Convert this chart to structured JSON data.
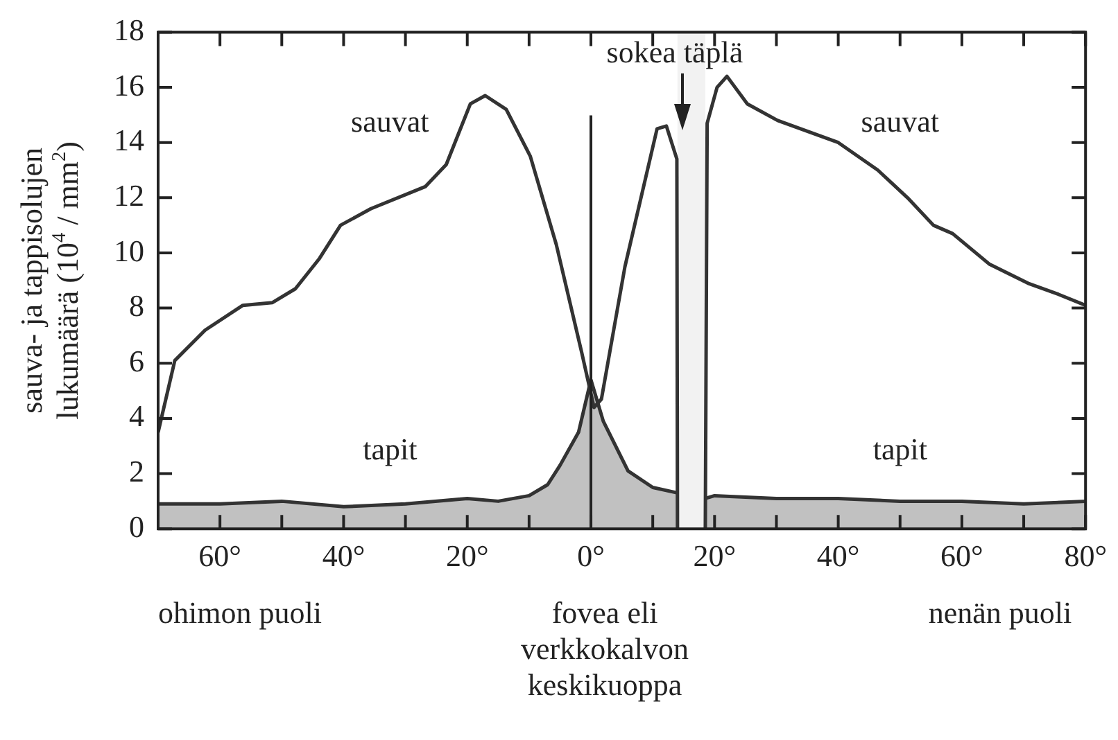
{
  "chart_data": {
    "type": "line",
    "ylabel": "sauva- ja tappisolujen lukumäärä (10$^{4}$ / mm$^{2}$)",
    "xlim": [
      -70,
      80
    ],
    "xticks": [
      {
        "value": -70,
        "label": null
      },
      {
        "value": -60,
        "label": "60°"
      },
      {
        "value": -50,
        "label": null
      },
      {
        "value": -40,
        "label": "40°"
      },
      {
        "value": -30,
        "label": null
      },
      {
        "value": -20,
        "label": "20°"
      },
      {
        "value": -10,
        "label": null
      },
      {
        "value": 0,
        "label": "0°"
      },
      {
        "value": 10,
        "label": null
      },
      {
        "value": 20,
        "label": "20°"
      },
      {
        "value": 30,
        "label": null
      },
      {
        "value": 40,
        "label": "40°"
      },
      {
        "value": 50,
        "label": null
      },
      {
        "value": 60,
        "label": "60°"
      },
      {
        "value": 70,
        "label": null
      },
      {
        "value": 80,
        "label": "80°"
      }
    ],
    "ylim": [
      0,
      18
    ],
    "yticks": [
      0,
      2,
      4,
      6,
      8,
      10,
      12,
      14,
      16,
      18
    ],
    "series": [
      {
        "name": "sauvat",
        "type": "line",
        "color": "#333333",
        "x": [
          -70,
          -67.3,
          -62.4,
          -56.3,
          -51.5,
          -47.8,
          -43.9,
          -40.5,
          -35.6,
          -26.8,
          -23.4,
          -19.5,
          -17.1,
          -13.7,
          -9.8,
          -5.6,
          -1.5,
          0.5,
          1.7,
          5.5,
          10.7,
          12.2,
          13.9,
          14,
          16,
          18.5,
          18.8,
          20.4,
          22,
          25.3,
          30.2,
          40,
          46.4,
          51.2,
          55.4,
          58.5,
          64.4,
          70.7,
          75.6,
          80
        ],
        "values": [
          3.5,
          6.1,
          7.2,
          8.1,
          8.2,
          8.7,
          9.8,
          11.0,
          11.6,
          12.4,
          13.2,
          15.4,
          15.7,
          15.2,
          13.5,
          10.3,
          6.4,
          4.4,
          4.7,
          9.5,
          14.5,
          14.6,
          13.4,
          0,
          null,
          0,
          14.7,
          16.0,
          16.4,
          15.4,
          14.8,
          14.0,
          13.0,
          12.0,
          11.0,
          10.7,
          9.6,
          8.9,
          8.5,
          8.1
        ]
      },
      {
        "name": "tapit",
        "type": "area",
        "color": "#333333",
        "x": [
          -70,
          -60,
          -50,
          -40,
          -30,
          -20,
          -15,
          -10,
          -7,
          -5,
          -2,
          0,
          2,
          6,
          10,
          14,
          16,
          18.5,
          20,
          30,
          40,
          50,
          60,
          70,
          80
        ],
        "values": [
          0.9,
          0.9,
          1.0,
          0.8,
          0.9,
          1.1,
          1.0,
          1.2,
          1.6,
          2.3,
          3.5,
          5.4,
          3.9,
          2.1,
          1.5,
          1.3,
          null,
          1.1,
          1.2,
          1.1,
          1.1,
          1.0,
          1.0,
          0.9,
          1.0
        ]
      }
    ],
    "ref_lines": [
      {
        "axis": "x",
        "value": 0,
        "color": "#222222"
      }
    ],
    "bands": [
      {
        "axis": "x",
        "from": 14,
        "to": 18.5,
        "label": "sokea täplä",
        "color": "#f2f2f2"
      }
    ],
    "annotations": [
      "ohimon puoli",
      "fovea eli verkkokalvon keskikuoppa",
      "nenän puoli"
    ],
    "grid": false,
    "legend": false
  }
}
